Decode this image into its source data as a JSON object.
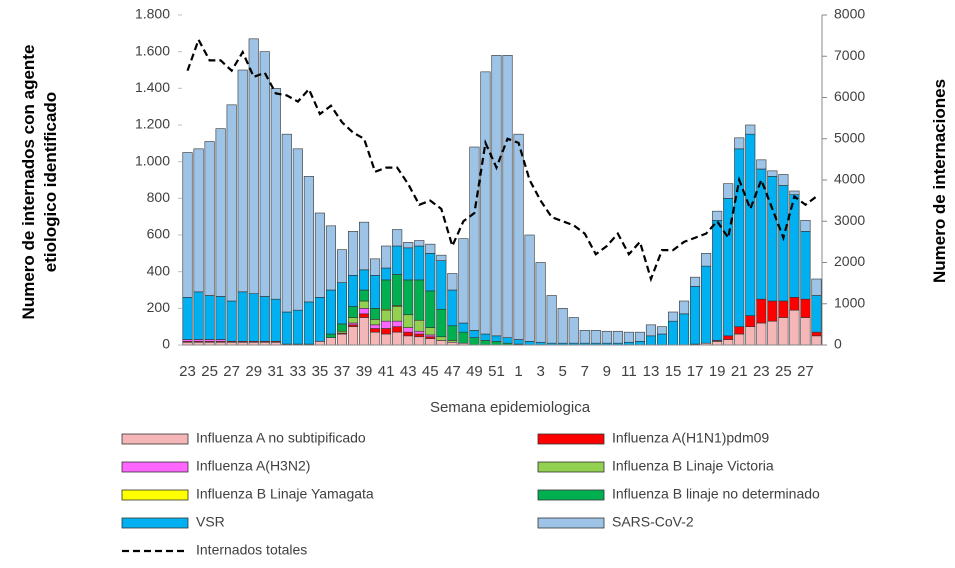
{
  "chart_data": {
    "type": "bar",
    "stacked": true,
    "x_label": "Semana epidemiologica",
    "y_label": "Numero de internados con agente etiologico identificado",
    "y2_label": "Numero de internaciones",
    "categories": [
      "23",
      null,
      "25",
      null,
      "27",
      null,
      "29",
      null,
      "31",
      null,
      "33",
      null,
      "35",
      null,
      "37",
      null,
      "39",
      null,
      "41",
      null,
      "43",
      null,
      "45",
      null,
      "47",
      null,
      "49",
      null,
      "51",
      null,
      "1",
      null,
      "3",
      null,
      "5",
      null,
      "7",
      null,
      "9",
      null,
      "11",
      null,
      "13",
      null,
      "15",
      null,
      "17",
      null,
      "19",
      null,
      "21",
      null,
      "23",
      null,
      "25",
      null,
      "27",
      null
    ],
    "ylim": [
      0,
      1800
    ],
    "yticks": [
      0,
      200,
      400,
      600,
      800,
      {
        "value": 1000,
        "label": "1.000"
      },
      {
        "value": 1200,
        "label": "1.200"
      },
      {
        "value": 1400,
        "label": "1.400"
      },
      {
        "value": 1600,
        "label": "1.600"
      },
      {
        "value": 1800,
        "label": "1.800"
      }
    ],
    "y2lim": [
      0,
      8000
    ],
    "y2ticks": [
      0,
      1000,
      2000,
      3000,
      4000,
      5000,
      6000,
      7000,
      8000
    ],
    "series": [
      {
        "name": "Influenza A no subtipificado",
        "color": "#f4b6b6",
        "values": [
          15,
          15,
          15,
          15,
          15,
          15,
          15,
          15,
          15,
          5,
          5,
          5,
          20,
          40,
          60,
          100,
          150,
          70,
          60,
          70,
          50,
          45,
          35,
          25,
          15,
          10,
          0,
          0,
          0,
          0,
          0,
          0,
          0,
          0,
          0,
          0,
          0,
          0,
          0,
          0,
          0,
          0,
          0,
          0,
          0,
          0,
          5,
          10,
          20,
          30,
          60,
          100,
          120,
          130,
          150,
          190,
          150,
          50
        ]
      },
      {
        "name": "Influenza A(H1N1)pdm09",
        "color": "#ff0000",
        "values": [
          5,
          5,
          5,
          5,
          5,
          5,
          5,
          5,
          5,
          0,
          0,
          0,
          0,
          0,
          5,
          10,
          20,
          20,
          30,
          30,
          20,
          15,
          10,
          0,
          0,
          0,
          0,
          0,
          0,
          0,
          0,
          0,
          0,
          0,
          0,
          0,
          0,
          0,
          0,
          0,
          0,
          0,
          0,
          0,
          0,
          0,
          0,
          0,
          5,
          20,
          40,
          60,
          130,
          110,
          90,
          70,
          100,
          20
        ]
      },
      {
        "name": "Influenza A(H3N2)",
        "color": "#ff66ff",
        "values": [
          10,
          10,
          10,
          10,
          0,
          0,
          0,
          0,
          0,
          0,
          0,
          0,
          0,
          0,
          0,
          10,
          30,
          20,
          40,
          30,
          25,
          15,
          10,
          0,
          0,
          0,
          0,
          0,
          0,
          0,
          0,
          0,
          0,
          0,
          0,
          0,
          0,
          0,
          0,
          0,
          0,
          0,
          0,
          0,
          0,
          0,
          0,
          0,
          0,
          0,
          0,
          0,
          0,
          0,
          0,
          0,
          0,
          0
        ]
      },
      {
        "name": "Influenza B Linaje Victoria",
        "color": "#92d050",
        "values": [
          0,
          0,
          0,
          0,
          0,
          0,
          0,
          0,
          0,
          0,
          0,
          0,
          0,
          0,
          10,
          30,
          40,
          30,
          60,
          80,
          70,
          60,
          40,
          20,
          10,
          0,
          0,
          0,
          0,
          0,
          0,
          0,
          0,
          0,
          0,
          0,
          0,
          0,
          0,
          0,
          0,
          0,
          0,
          0,
          0,
          0,
          0,
          0,
          0,
          0,
          0,
          0,
          0,
          0,
          0,
          0,
          0,
          0
        ]
      },
      {
        "name": "Influenza B Linaje Yamagata",
        "color": "#ffff00",
        "values": [
          0,
          0,
          0,
          0,
          0,
          0,
          0,
          0,
          0,
          0,
          0,
          0,
          0,
          0,
          0,
          0,
          0,
          0,
          5,
          5,
          0,
          0,
          0,
          0,
          0,
          0,
          0,
          0,
          0,
          0,
          0,
          0,
          0,
          0,
          0,
          0,
          0,
          0,
          0,
          0,
          0,
          0,
          0,
          0,
          0,
          0,
          0,
          0,
          0,
          0,
          0,
          0,
          0,
          0,
          0,
          0,
          0,
          0
        ]
      },
      {
        "name": "Influenza B linaje no determinado",
        "color": "#00b050",
        "values": [
          0,
          0,
          0,
          0,
          0,
          0,
          0,
          0,
          0,
          0,
          0,
          0,
          0,
          20,
          40,
          60,
          60,
          60,
          160,
          170,
          190,
          220,
          200,
          150,
          80,
          60,
          40,
          25,
          20,
          10,
          5,
          0,
          0,
          0,
          0,
          0,
          0,
          0,
          0,
          0,
          0,
          0,
          0,
          0,
          0,
          0,
          0,
          0,
          0,
          0,
          0,
          0,
          0,
          0,
          0,
          0,
          0,
          0
        ]
      },
      {
        "name": "VSR",
        "color": "#00b0f0",
        "values": [
          230,
          260,
          240,
          235,
          220,
          270,
          260,
          245,
          230,
          175,
          185,
          230,
          240,
          240,
          225,
          170,
          110,
          180,
          65,
          155,
          175,
          185,
          205,
          265,
          195,
          50,
          40,
          35,
          30,
          30,
          25,
          20,
          15,
          10,
          10,
          10,
          10,
          10,
          10,
          10,
          15,
          20,
          50,
          60,
          130,
          170,
          315,
          420,
          655,
          750,
          970,
          990,
          710,
          680,
          630,
          560,
          370,
          200
        ]
      },
      {
        "name": "SARS-CoV-2",
        "color": "#9dc3e6",
        "values": [
          790,
          780,
          840,
          915,
          1070,
          1210,
          1390,
          1335,
          1150,
          970,
          880,
          685,
          460,
          350,
          180,
          240,
          260,
          90,
          120,
          90,
          30,
          30,
          50,
          30,
          90,
          460,
          1000,
          1430,
          1530,
          1540,
          1120,
          580,
          435,
          260,
          190,
          140,
          70,
          70,
          65,
          65,
          55,
          50,
          60,
          40,
          50,
          70,
          50,
          70,
          50,
          80,
          60,
          50,
          50,
          30,
          60,
          20,
          60,
          90
        ]
      },
      {
        "name": "Internados totales",
        "type": "line",
        "axis": "y2",
        "color": "#000000",
        "dashed": true,
        "values": [
          6650,
          7400,
          6900,
          6900,
          6650,
          7100,
          6500,
          6600,
          6100,
          6050,
          5900,
          6200,
          5600,
          5800,
          5400,
          5150,
          5000,
          4200,
          4300,
          4300,
          3900,
          3400,
          3500,
          3300,
          2400,
          3000,
          3200,
          4900,
          4300,
          5000,
          4900,
          4000,
          3500,
          3100,
          3000,
          2900,
          2700,
          2200,
          2400,
          2700,
          2200,
          2500,
          1600,
          2300,
          2300,
          2500,
          2600,
          2700,
          3000,
          2600,
          4000,
          3300,
          4000,
          3300,
          2600,
          3600,
          3400,
          3600
        ]
      }
    ]
  }
}
